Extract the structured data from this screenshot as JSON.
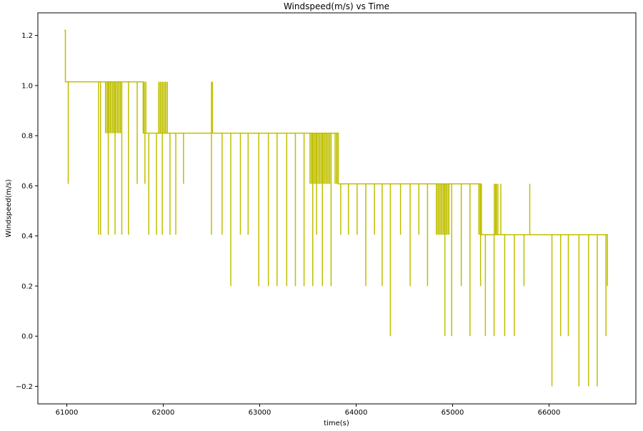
{
  "chart_data": {
    "type": "line",
    "title": "Windspeed(m/s) vs Time",
    "xlabel": "time(s)",
    "ylabel": "Windspeed(m/s)",
    "xlim": [
      60700,
      66900
    ],
    "ylim": [
      -0.27,
      1.29
    ],
    "xticks": [
      61000,
      62000,
      63000,
      64000,
      65000,
      66000
    ],
    "yticks": [
      -0.2,
      0.0,
      0.2,
      0.4,
      0.6,
      0.8,
      1.0,
      1.2
    ],
    "ytick_labels": [
      "−0.2",
      "0.0",
      "0.2",
      "0.4",
      "0.6",
      "0.8",
      "1.0",
      "1.2"
    ],
    "grid": false,
    "series": [
      {
        "color": "#bfbf00",
        "levels": [
          {
            "x_start": 60975,
            "x_end": 60985,
            "y": 1.22
          },
          {
            "x_start": 60985,
            "x_end": 61795,
            "y": 1.015
          },
          {
            "x_start": 61795,
            "x_end": 63815,
            "y": 0.81
          },
          {
            "x_start": 63815,
            "x_end": 65290,
            "y": 0.608
          },
          {
            "x_start": 65290,
            "x_end": 66605,
            "y": 0.405
          }
        ],
        "spikes": [
          {
            "x": 61015,
            "y": 0.608
          },
          {
            "x": 61330,
            "y": 0.405
          },
          {
            "x": 61350,
            "y": 0.405
          },
          {
            "x": 61430,
            "y": 0.405
          },
          {
            "x": 61500,
            "y": 0.405
          },
          {
            "x": 61570,
            "y": 0.405
          },
          {
            "x": 61640,
            "y": 0.405
          },
          {
            "x": 61730,
            "y": 0.608
          },
          {
            "x": 61810,
            "y": 0.608
          },
          {
            "x": 61850,
            "y": 0.405
          },
          {
            "x": 61930,
            "y": 0.405
          },
          {
            "x": 61990,
            "y": 0.405
          },
          {
            "x": 62070,
            "y": 0.405
          },
          {
            "x": 62130,
            "y": 0.405
          },
          {
            "x": 62210,
            "y": 0.608
          },
          {
            "x": 62500,
            "y": 0.405
          },
          {
            "x": 62610,
            "y": 0.405
          },
          {
            "x": 62700,
            "y": 0.2
          },
          {
            "x": 62800,
            "y": 0.405
          },
          {
            "x": 62880,
            "y": 0.405
          },
          {
            "x": 62990,
            "y": 0.2
          },
          {
            "x": 63090,
            "y": 0.2
          },
          {
            "x": 63180,
            "y": 0.2
          },
          {
            "x": 63280,
            "y": 0.2
          },
          {
            "x": 63370,
            "y": 0.2
          },
          {
            "x": 63460,
            "y": 0.2
          },
          {
            "x": 63550,
            "y": 0.2
          },
          {
            "x": 63590,
            "y": 0.405
          },
          {
            "x": 63650,
            "y": 0.2
          },
          {
            "x": 63740,
            "y": 0.2
          },
          {
            "x": 63840,
            "y": 0.405
          },
          {
            "x": 63920,
            "y": 0.405
          },
          {
            "x": 64010,
            "y": 0.405
          },
          {
            "x": 64100,
            "y": 0.2
          },
          {
            "x": 64190,
            "y": 0.405
          },
          {
            "x": 64270,
            "y": 0.2
          },
          {
            "x": 64355,
            "y": 0.0
          },
          {
            "x": 64460,
            "y": 0.405
          },
          {
            "x": 64560,
            "y": 0.2
          },
          {
            "x": 64650,
            "y": 0.405
          },
          {
            "x": 64740,
            "y": 0.2
          },
          {
            "x": 64920,
            "y": 0.0
          },
          {
            "x": 64990,
            "y": 0.0
          },
          {
            "x": 65090,
            "y": 0.2
          },
          {
            "x": 65180,
            "y": 0.0
          },
          {
            "x": 65290,
            "y": 0.2
          },
          {
            "x": 65340,
            "y": 0.0
          },
          {
            "x": 65430,
            "y": 0.0
          },
          {
            "x": 65540,
            "y": 0.0
          },
          {
            "x": 65640,
            "y": 0.0
          },
          {
            "x": 65740,
            "y": 0.2
          },
          {
            "x": 66030,
            "y": -0.2
          },
          {
            "x": 66120,
            "y": 0.0
          },
          {
            "x": 66200,
            "y": 0.0
          },
          {
            "x": 66310,
            "y": -0.2
          },
          {
            "x": 66410,
            "y": -0.2
          },
          {
            "x": 66500,
            "y": -0.2
          },
          {
            "x": 66590,
            "y": 0.0
          }
        ],
        "up_spikes": [
          {
            "x": 62500,
            "y": 1.015
          },
          {
            "x": 62510,
            "y": 1.015
          },
          {
            "x": 65450,
            "y": 0.608
          },
          {
            "x": 65500,
            "y": 0.608
          },
          {
            "x": 65800,
            "y": 0.608
          }
        ],
        "dense_bands": [
          {
            "x_start": 61400,
            "x_end": 61570,
            "y_low": 0.81,
            "y_high": 1.015
          },
          {
            "x_start": 61790,
            "x_end": 61830,
            "y_low": 0.81,
            "y_high": 1.015
          },
          {
            "x_start": 61950,
            "x_end": 62050,
            "y_low": 0.81,
            "y_high": 1.015
          },
          {
            "x_start": 63520,
            "x_end": 63730,
            "y_low": 0.608,
            "y_high": 0.81
          },
          {
            "x_start": 63780,
            "x_end": 63820,
            "y_low": 0.608,
            "y_high": 0.81
          },
          {
            "x_start": 64830,
            "x_end": 64970,
            "y_low": 0.405,
            "y_high": 0.608
          },
          {
            "x_start": 65270,
            "x_end": 65310,
            "y_low": 0.405,
            "y_high": 0.608
          },
          {
            "x_start": 65430,
            "x_end": 65480,
            "y_low": 0.405,
            "y_high": 0.608
          }
        ]
      }
    ]
  }
}
